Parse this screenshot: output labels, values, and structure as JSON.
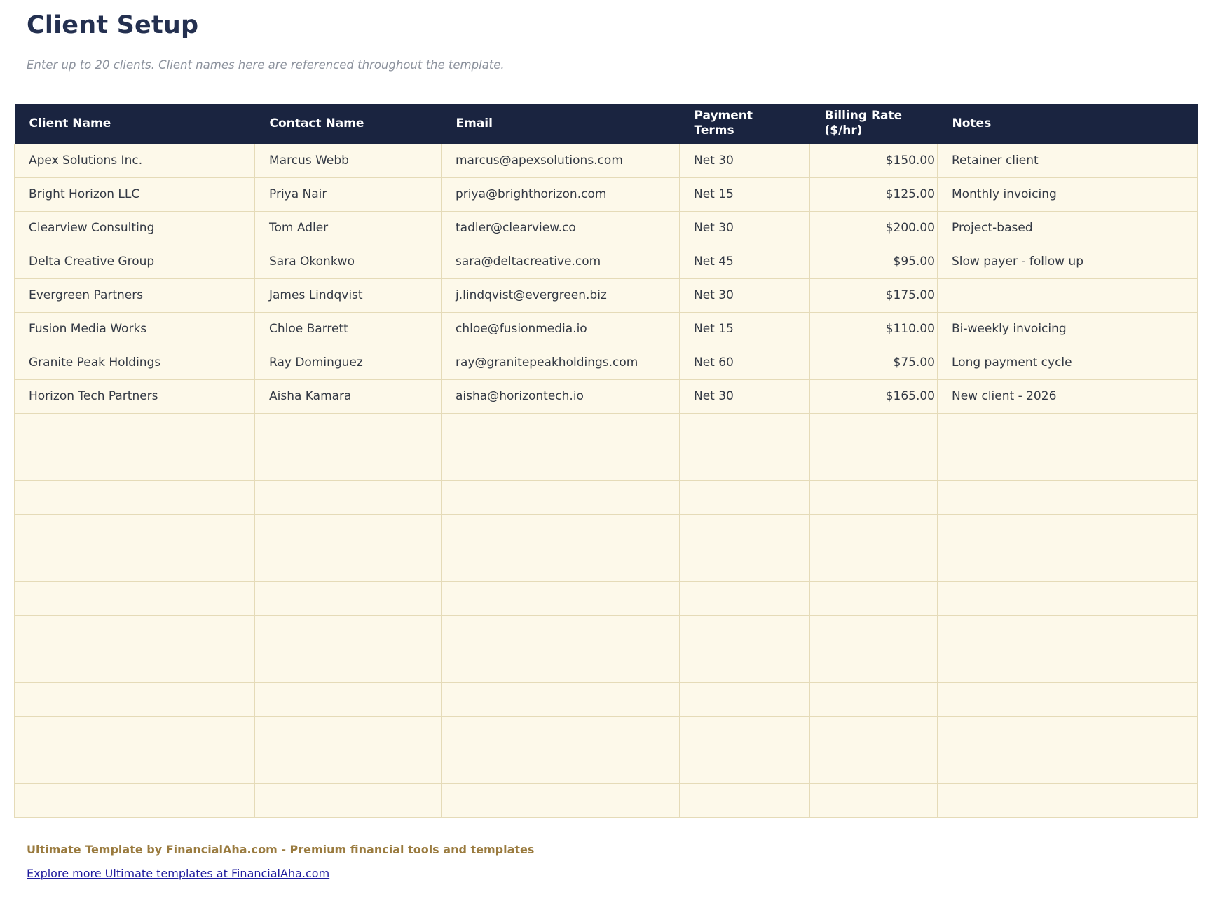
{
  "page": {
    "title": "Client Setup",
    "subtitle": "Enter up to 20 clients. Client names here are referenced throughout the template."
  },
  "table": {
    "columns": [
      {
        "key": "client-name",
        "label": "Client Name"
      },
      {
        "key": "contact-name",
        "label": "Contact Name"
      },
      {
        "key": "email",
        "label": "Email"
      },
      {
        "key": "payment-terms",
        "label": "Payment Terms"
      },
      {
        "key": "billing-rate",
        "label": "Billing Rate ($/hr)"
      },
      {
        "key": "notes",
        "label": "Notes"
      }
    ],
    "rows": [
      [
        "Apex Solutions Inc.",
        "Marcus Webb",
        "marcus@apexsolutions.com",
        "Net 30",
        "$150.00",
        "Retainer client"
      ],
      [
        "Bright Horizon LLC",
        "Priya Nair",
        "priya@brighthorizon.com",
        "Net 15",
        "$125.00",
        "Monthly invoicing"
      ],
      [
        "Clearview Consulting",
        "Tom Adler",
        "tadler@clearview.co",
        "Net 30",
        "$200.00",
        "Project-based"
      ],
      [
        "Delta Creative Group",
        "Sara Okonkwo",
        "sara@deltacreative.com",
        "Net 45",
        "$95.00",
        "Slow payer - follow up"
      ],
      [
        "Evergreen Partners",
        "James Lindqvist",
        "j.lindqvist@evergreen.biz",
        "Net 30",
        "$175.00",
        ""
      ],
      [
        "Fusion Media Works",
        "Chloe Barrett",
        "chloe@fusionmedia.io",
        "Net 15",
        "$110.00",
        "Bi-weekly invoicing"
      ],
      [
        "Granite Peak Holdings",
        "Ray Dominguez",
        "ray@granitepeakholdings.com",
        "Net 60",
        "$75.00",
        "Long payment cycle"
      ],
      [
        "Horizon Tech Partners",
        "Aisha Kamara",
        "aisha@horizontech.io",
        "Net 30",
        "$165.00",
        "New client - 2026"
      ]
    ],
    "empty_row_count": 12
  },
  "footer": {
    "branding": "Ultimate Template by FinancialAha.com - Premium financial tools and templates",
    "link_text": "Explore more Ultimate templates at FinancialAha.com"
  },
  "colors": {
    "header_bg": "#1a2440",
    "header_text": "#ffffff",
    "row_bg": "#fdf9ea",
    "table_border": "#e5dbb8",
    "title_text": "#243050",
    "subtitle_text": "#8b919c",
    "footer_brand_text": "#9a7b3f",
    "link_text": "#201d9e"
  }
}
